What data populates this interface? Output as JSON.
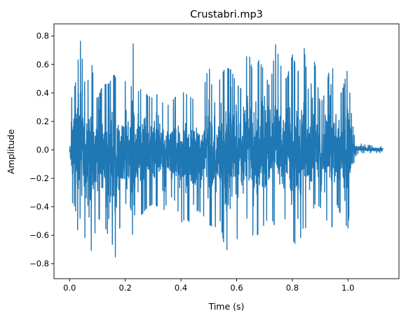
{
  "chart_data": {
    "type": "line",
    "title": "Crustabri.mp3",
    "xlabel": "Time (s)",
    "ylabel": "Amplitude",
    "xlim": [
      -0.056,
      1.183
    ],
    "ylim": [
      -0.905,
      0.885
    ],
    "x_ticks": [
      0.0,
      0.2,
      0.4,
      0.6,
      0.8,
      1.0
    ],
    "x_tick_labels": [
      "0.0",
      "0.2",
      "0.4",
      "0.6",
      "0.8",
      "1.0"
    ],
    "y_ticks": [
      -0.8,
      -0.6,
      -0.4,
      -0.2,
      0.0,
      0.2,
      0.4,
      0.6,
      0.8
    ],
    "y_tick_labels": [
      "−0.8",
      "−0.6",
      "−0.4",
      "−0.2",
      "0.0",
      "0.2",
      "0.4",
      "0.6",
      "0.8"
    ],
    "grid": false,
    "series": [
      {
        "color": "#1f77b4",
        "envelope": {
          "x": [
            0.0,
            0.005,
            0.01,
            0.02,
            0.03,
            0.04,
            0.05,
            0.06,
            0.07,
            0.08,
            0.09,
            0.1,
            0.12,
            0.14,
            0.16,
            0.17,
            0.18,
            0.2,
            0.22,
            0.23,
            0.24,
            0.26,
            0.28,
            0.3,
            0.32,
            0.34,
            0.36,
            0.38,
            0.4,
            0.42,
            0.44,
            0.46,
            0.48,
            0.5,
            0.52,
            0.54,
            0.56,
            0.58,
            0.6,
            0.62,
            0.64,
            0.66,
            0.68,
            0.7,
            0.72,
            0.74,
            0.76,
            0.78,
            0.8,
            0.82,
            0.84,
            0.86,
            0.88,
            0.9,
            0.92,
            0.94,
            0.96,
            0.98,
            1.0,
            1.01,
            1.02,
            1.03,
            1.05,
            1.08,
            1.1,
            1.125
          ],
          "max": [
            0.05,
            0.3,
            0.42,
            0.45,
            0.62,
            0.78,
            0.52,
            0.42,
            0.53,
            0.6,
            0.43,
            0.35,
            0.46,
            0.46,
            0.53,
            0.48,
            0.41,
            0.48,
            0.38,
            0.81,
            0.4,
            0.43,
            0.38,
            0.36,
            0.4,
            0.3,
            0.32,
            0.37,
            0.41,
            0.39,
            0.36,
            0.34,
            0.41,
            0.6,
            0.32,
            0.5,
            0.58,
            0.56,
            0.46,
            0.42,
            0.72,
            0.52,
            0.63,
            0.55,
            0.43,
            0.74,
            0.58,
            0.49,
            0.67,
            0.54,
            0.77,
            0.37,
            0.62,
            0.32,
            0.41,
            0.65,
            0.33,
            0.42,
            0.58,
            0.3,
            0.12,
            0.05,
            0.04,
            0.03,
            0.03,
            0.02
          ],
          "min": [
            -0.05,
            -0.3,
            -0.37,
            -0.4,
            -0.58,
            -0.45,
            -0.6,
            -0.63,
            -0.47,
            -0.77,
            -0.6,
            -0.48,
            -0.5,
            -0.61,
            -0.69,
            -0.83,
            -0.55,
            -0.45,
            -0.4,
            -0.73,
            -0.48,
            -0.45,
            -0.4,
            -0.38,
            -0.4,
            -0.42,
            -0.32,
            -0.36,
            -0.51,
            -0.48,
            -0.53,
            -0.42,
            -0.46,
            -0.52,
            -0.55,
            -0.49,
            -0.73,
            -0.62,
            -0.64,
            -0.48,
            -0.48,
            -0.61,
            -0.59,
            -0.52,
            -0.46,
            -0.55,
            -0.67,
            -0.4,
            -0.63,
            -0.69,
            -0.54,
            -0.56,
            -0.38,
            -0.4,
            -0.48,
            -0.56,
            -0.38,
            -0.49,
            -0.55,
            -0.28,
            -0.1,
            -0.03,
            -0.02,
            -0.02,
            -0.02,
            -0.02
          ]
        }
      }
    ]
  }
}
